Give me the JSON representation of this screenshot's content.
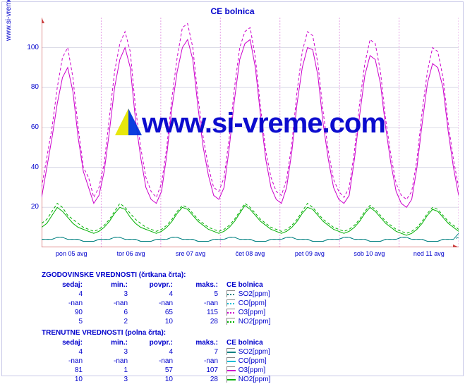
{
  "title": "CE bolnica",
  "site_label": "www.si-vreme.com",
  "watermark_text": "www.si-vreme.com",
  "chart": {
    "type": "line",
    "background_color": "#ffffff",
    "plot_border_color": "#c8c8e8",
    "grid_color": "#dcdce8",
    "vgrid_color": "#e4a0e4",
    "axis_color": "#cc4444",
    "text_color": "#0000cc",
    "font_size_title": 12,
    "font_size_tick": 10,
    "ylim": [
      0,
      115
    ],
    "yticks": [
      20,
      40,
      60,
      80,
      100
    ],
    "x_categories": [
      "pon 05 avg",
      "tor 06 avg",
      "sre 07 avg",
      "čet 08 avg",
      "pet 09 avg",
      "sob 10 avg",
      "ned 11 avg"
    ],
    "series_colors": {
      "SO2": "#008080",
      "CO": "#00bcd4",
      "O3": "#cc00cc",
      "NO2": "#00b000"
    },
    "dash_pattern_hist": "4,3",
    "line_width": 1,
    "series": {
      "O3_hist": [
        30,
        45,
        60,
        80,
        95,
        100,
        85,
        60,
        40,
        35,
        25,
        30,
        42,
        65,
        88,
        102,
        108,
        98,
        70,
        50,
        35,
        28,
        25,
        32,
        50,
        75,
        95,
        110,
        112,
        100,
        75,
        55,
        40,
        30,
        28,
        35,
        55,
        80,
        100,
        108,
        110,
        95,
        70,
        48,
        35,
        28,
        26,
        34,
        52,
        78,
        98,
        108,
        106,
        92,
        68,
        48,
        34,
        28,
        25,
        30,
        48,
        72,
        92,
        104,
        102,
        88,
        64,
        46,
        32,
        26,
        24,
        28,
        44,
        68,
        88,
        100,
        98,
        85,
        62,
        44,
        30
      ],
      "O3_cur": [
        25,
        40,
        55,
        72,
        85,
        90,
        78,
        55,
        38,
        30,
        22,
        26,
        38,
        58,
        80,
        94,
        100,
        90,
        64,
        45,
        30,
        24,
        22,
        28,
        46,
        70,
        88,
        100,
        104,
        94,
        70,
        50,
        36,
        26,
        24,
        30,
        50,
        74,
        94,
        102,
        104,
        90,
        66,
        44,
        30,
        24,
        22,
        30,
        48,
        72,
        90,
        100,
        99,
        86,
        62,
        44,
        30,
        24,
        22,
        26,
        44,
        66,
        86,
        96,
        94,
        82,
        60,
        42,
        28,
        22,
        20,
        24,
        40,
        62,
        82,
        92,
        90,
        80,
        58,
        40,
        26
      ],
      "NO2_hist": [
        12,
        14,
        18,
        22,
        20,
        16,
        14,
        12,
        10,
        9,
        8,
        9,
        11,
        14,
        18,
        22,
        20,
        17,
        14,
        12,
        10,
        9,
        8,
        9,
        11,
        14,
        18,
        21,
        20,
        17,
        14,
        12,
        10,
        9,
        8,
        9,
        11,
        14,
        18,
        22,
        20,
        17,
        14,
        12,
        10,
        9,
        8,
        9,
        11,
        14,
        18,
        22,
        20,
        17,
        14,
        12,
        10,
        9,
        8,
        9,
        11,
        14,
        18,
        21,
        19,
        16,
        13,
        11,
        9,
        8,
        7,
        8,
        10,
        13,
        17,
        20,
        19,
        16,
        13,
        11,
        9
      ],
      "NO2_cur": [
        10,
        12,
        16,
        20,
        18,
        15,
        12,
        10,
        9,
        8,
        7,
        8,
        10,
        13,
        17,
        20,
        19,
        15,
        12,
        10,
        9,
        8,
        7,
        8,
        10,
        13,
        17,
        20,
        19,
        16,
        13,
        11,
        9,
        8,
        7,
        8,
        10,
        13,
        17,
        21,
        19,
        16,
        13,
        11,
        9,
        8,
        7,
        8,
        10,
        13,
        17,
        20,
        19,
        16,
        13,
        11,
        9,
        8,
        7,
        8,
        10,
        13,
        17,
        20,
        18,
        15,
        12,
        10,
        8,
        7,
        6,
        7,
        9,
        12,
        16,
        19,
        18,
        15,
        12,
        10,
        8
      ],
      "SO2_hist": [
        4,
        4,
        4,
        5,
        5,
        4,
        4,
        4,
        3,
        3,
        3,
        4,
        4,
        4,
        5,
        5,
        4,
        4,
        4,
        3,
        3,
        3,
        4,
        4,
        4,
        5,
        5,
        4,
        4,
        4,
        3,
        3,
        3,
        4,
        4,
        4,
        5,
        5,
        4,
        4,
        4,
        3,
        3,
        3,
        4,
        4,
        4,
        5,
        5,
        4,
        4,
        4,
        3,
        3,
        3,
        4,
        4,
        4,
        5,
        5,
        4,
        4,
        4,
        3,
        3,
        3,
        4,
        4,
        4,
        5,
        5,
        4,
        4,
        4,
        3,
        3,
        3,
        4,
        4,
        4,
        5
      ],
      "SO2_cur": [
        4,
        4,
        4,
        5,
        5,
        4,
        4,
        4,
        3,
        3,
        3,
        4,
        4,
        4,
        5,
        5,
        4,
        4,
        4,
        3,
        3,
        3,
        4,
        4,
        4,
        5,
        5,
        4,
        4,
        4,
        3,
        3,
        3,
        4,
        4,
        4,
        5,
        5,
        4,
        4,
        4,
        3,
        3,
        3,
        4,
        4,
        4,
        5,
        5,
        4,
        4,
        4,
        3,
        3,
        3,
        4,
        4,
        4,
        5,
        5,
        4,
        4,
        4,
        3,
        3,
        3,
        4,
        4,
        4,
        5,
        5,
        4,
        4,
        4,
        3,
        3,
        3,
        4,
        4,
        4,
        7
      ]
    }
  },
  "hist_header": "ZGODOVINSKE VREDNOSTI (črtkana črta):",
  "cur_header": "TRENUTNE VREDNOSTI (polna črta):",
  "col_labels": {
    "sedaj": "sedaj:",
    "min": "min.:",
    "povpr": "povpr.:",
    "maks": "maks.:"
  },
  "location_label": "CE bolnica",
  "pollutants": {
    "SO2": "SO2[ppm]",
    "CO": "CO[ppm]",
    "O3": "O3[ppm]",
    "NO2": "NO2[ppm]"
  },
  "hist_rows": [
    {
      "key": "SO2",
      "sedaj": "4",
      "min": "3",
      "povpr": "4",
      "maks": "5"
    },
    {
      "key": "CO",
      "sedaj": "-nan",
      "min": "-nan",
      "povpr": "-nan",
      "maks": "-nan"
    },
    {
      "key": "O3",
      "sedaj": "90",
      "min": "6",
      "povpr": "65",
      "maks": "115"
    },
    {
      "key": "NO2",
      "sedaj": "5",
      "min": "2",
      "povpr": "10",
      "maks": "28"
    }
  ],
  "cur_rows": [
    {
      "key": "SO2",
      "sedaj": "4",
      "min": "3",
      "povpr": "4",
      "maks": "7"
    },
    {
      "key": "CO",
      "sedaj": "-nan",
      "min": "-nan",
      "povpr": "-nan",
      "maks": "-nan"
    },
    {
      "key": "O3",
      "sedaj": "81",
      "min": "1",
      "povpr": "57",
      "maks": "107"
    },
    {
      "key": "NO2",
      "sedaj": "10",
      "min": "3",
      "povpr": "10",
      "maks": "28"
    }
  ]
}
